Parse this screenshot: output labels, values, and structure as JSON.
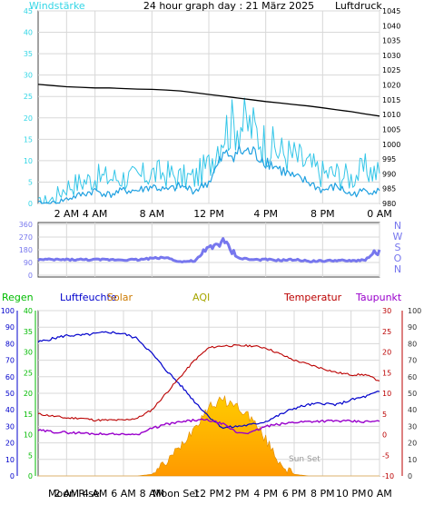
{
  "title": "24 hour graph day : 21 März 2025",
  "colors": {
    "wind": "#33d6e6",
    "gust": "#33c6e8",
    "pressure": "#000000",
    "direction": "#7777ee",
    "humidity": "#0000cc",
    "temperature": "#bb0000",
    "dewpoint": "#9900cc",
    "solar": "#ff9900",
    "rain": "#00bb00",
    "aqi": "#a6a600"
  },
  "time_ticks": [
    "2 AM",
    "4 AM",
    "8 AM",
    "12 PM",
    "4 PM",
    "8 PM",
    "0 AM"
  ],
  "bottom_ticks": [
    "2 AM",
    "4 AM",
    "6 AM",
    "8 AM",
    "12 PM",
    "2 PM",
    "4 PM",
    "6 PM",
    "8 PM",
    "10 PM",
    "0 AM"
  ],
  "bottom_labels": {
    "moon_rise": "Moon Rise",
    "moon_set": "Moon Set",
    "sun_set": "Sun Set"
  },
  "chart_data": [
    {
      "type": "line",
      "title": "24 hour graph day : 21 März 2025",
      "ylabel": "Windstärke",
      "y2label": "Luftdruck",
      "ylim": [
        0,
        45
      ],
      "y_ticks": [
        0,
        5,
        10,
        15,
        20,
        25,
        30,
        35,
        40,
        45
      ],
      "y2lim": [
        980,
        1045
      ],
      "y2_ticks": [
        980,
        985,
        990,
        995,
        1000,
        1005,
        1010,
        1015,
        1020,
        1025,
        1030,
        1035,
        1040,
        1045
      ],
      "x": [
        0,
        1,
        2,
        3,
        4,
        5,
        6,
        7,
        8,
        9,
        10,
        11,
        12,
        13,
        14,
        15,
        16,
        17,
        18,
        19,
        20,
        21,
        22,
        23,
        24
      ],
      "series": [
        {
          "name": "Windstärke",
          "axis": "left",
          "values": [
            0,
            0,
            1,
            2,
            3,
            2,
            3,
            3,
            4,
            3,
            4,
            3,
            5,
            11,
            12,
            12,
            10,
            8,
            6,
            5,
            3,
            4,
            2,
            3,
            3
          ]
        },
        {
          "name": "Böen",
          "axis": "left",
          "values": [
            0,
            1,
            4,
            5,
            6,
            6,
            6,
            6,
            7,
            7,
            6,
            6,
            9,
            17,
            19,
            18,
            14,
            12,
            11,
            9,
            7,
            7,
            6,
            8,
            7
          ]
        },
        {
          "name": "Luftdruck",
          "axis": "right",
          "values": [
            1020.2,
            1019.8,
            1019.4,
            1019.2,
            1019,
            1019,
            1018.8,
            1018.6,
            1018.5,
            1018.3,
            1018,
            1017.4,
            1016.8,
            1016.2,
            1015.6,
            1015,
            1014.4,
            1013.9,
            1013.4,
            1012.9,
            1012.3,
            1011.6,
            1011,
            1010.2,
            1009.5
          ]
        }
      ]
    },
    {
      "type": "line",
      "ylabel": "Windrichtung",
      "ylim": [
        0,
        360
      ],
      "y_ticks": [
        0,
        90,
        180,
        270,
        360
      ],
      "compass": [
        "N",
        "W",
        "S",
        "O",
        "N"
      ],
      "x": [
        0,
        1,
        2,
        3,
        4,
        5,
        6,
        7,
        8,
        9,
        10,
        11,
        12,
        13,
        14,
        15,
        16,
        17,
        18,
        19,
        20,
        21,
        22,
        23,
        24
      ],
      "series": [
        {
          "name": "Windrichtung",
          "values": [
            110,
            110,
            110,
            110,
            110,
            110,
            110,
            110,
            120,
            125,
            95,
            100,
            190,
            240,
            125,
            110,
            110,
            105,
            110,
            100,
            100,
            105,
            100,
            110,
            180
          ]
        }
      ]
    },
    {
      "type": "line",
      "legend": [
        "Regen",
        "Luftfeuchte",
        "Solar",
        "AQI",
        "Temperatur",
        "Taupunkt"
      ],
      "ylim_humidity": [
        0,
        100
      ],
      "humidity_ticks": [
        0,
        10,
        20,
        30,
        40,
        50,
        60,
        70,
        80,
        90,
        100
      ],
      "ylim_rain": [
        0,
        40
      ],
      "rain_ticks": [
        0,
        5,
        10,
        15,
        20,
        25,
        30,
        35,
        40
      ],
      "ylim_temp": [
        -10,
        30
      ],
      "temp_ticks": [
        -10,
        -5,
        0,
        5,
        10,
        15,
        20,
        25,
        30
      ],
      "ylim_solar": [
        0,
        100
      ],
      "solar_ticks": [
        0,
        10,
        20,
        30,
        40,
        50,
        60,
        70,
        80,
        90,
        100
      ],
      "x": [
        0,
        1,
        2,
        3,
        4,
        5,
        6,
        7,
        8,
        9,
        10,
        11,
        12,
        13,
        14,
        15,
        16,
        17,
        18,
        19,
        20,
        21,
        22,
        23,
        24
      ],
      "series": [
        {
          "name": "Luftfeuchte",
          "values": [
            81,
            83,
            85,
            85,
            86,
            87,
            86,
            83,
            74,
            64,
            55,
            45,
            36,
            29,
            30,
            31,
            33,
            37,
            41,
            43,
            44,
            43,
            46,
            48,
            51
          ]
        },
        {
          "name": "Temperatur",
          "values": [
            5,
            4.5,
            4,
            4,
            3.5,
            3.5,
            3.5,
            4,
            6,
            10,
            14,
            18,
            21,
            21.5,
            21.5,
            21.5,
            21,
            19.5,
            18,
            17,
            16,
            15,
            14.5,
            14.5,
            13
          ]
        },
        {
          "name": "Taupunkt",
          "values": [
            1,
            0.7,
            0.5,
            0.4,
            0.2,
            0.1,
            0,
            0,
            1.5,
            2.5,
            3,
            3.5,
            3.5,
            2.5,
            0.5,
            0.5,
            2,
            2.5,
            3,
            3.2,
            3.3,
            3.3,
            3.2,
            3.1,
            3.2
          ]
        },
        {
          "name": "Solar",
          "values": [
            0,
            0,
            0,
            0,
            0,
            0,
            0,
            0,
            1,
            8,
            18,
            30,
            42,
            46,
            42,
            35,
            22,
            8,
            1,
            0,
            0,
            0,
            0,
            0,
            0
          ]
        }
      ]
    }
  ]
}
